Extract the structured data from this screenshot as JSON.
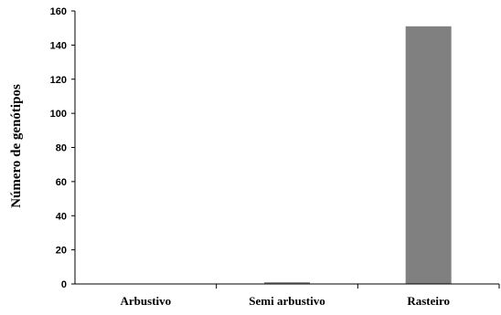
{
  "chart_data": {
    "type": "bar",
    "categories": [
      "Arbustivo",
      "Semi arbustivo",
      "Rasteiro"
    ],
    "values": [
      0,
      1,
      151
    ],
    "title": "",
    "xlabel": "",
    "ylabel": "Número de genótipos",
    "ylim": [
      0,
      160
    ],
    "yticks": [
      0,
      20,
      40,
      60,
      80,
      100,
      120,
      140,
      160
    ],
    "grid": false,
    "legend": "none",
    "bar_color": "#808080"
  }
}
